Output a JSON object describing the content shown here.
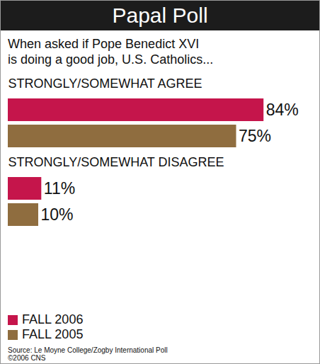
{
  "chart_data": {
    "type": "bar",
    "orientation": "horizontal",
    "title": "Papal Poll",
    "subtitle": "When asked if Pope Benedict XVI\nis doing a good job, U.S. Catholics...",
    "categories": [
      "STRONGLY/SOMEWHAT AGREE",
      "STRONGLY/SOMEWHAT DISAGREE"
    ],
    "series": [
      {
        "name": "FALL 2006",
        "color": "#c5154b",
        "values": [
          84,
          11
        ],
        "value_labels": [
          "84%",
          "11%"
        ]
      },
      {
        "name": "FALL 2005",
        "color": "#8f6d3f",
        "values": [
          75,
          10
        ],
        "value_labels": [
          "75%",
          "10%"
        ]
      }
    ],
    "xlim": [
      0,
      100
    ],
    "tick_labels": false,
    "data_labels": true,
    "legend": "bottom-left",
    "source": "Source: Le Moyne College/Zogby International Poll\n©2006 CNS"
  }
}
